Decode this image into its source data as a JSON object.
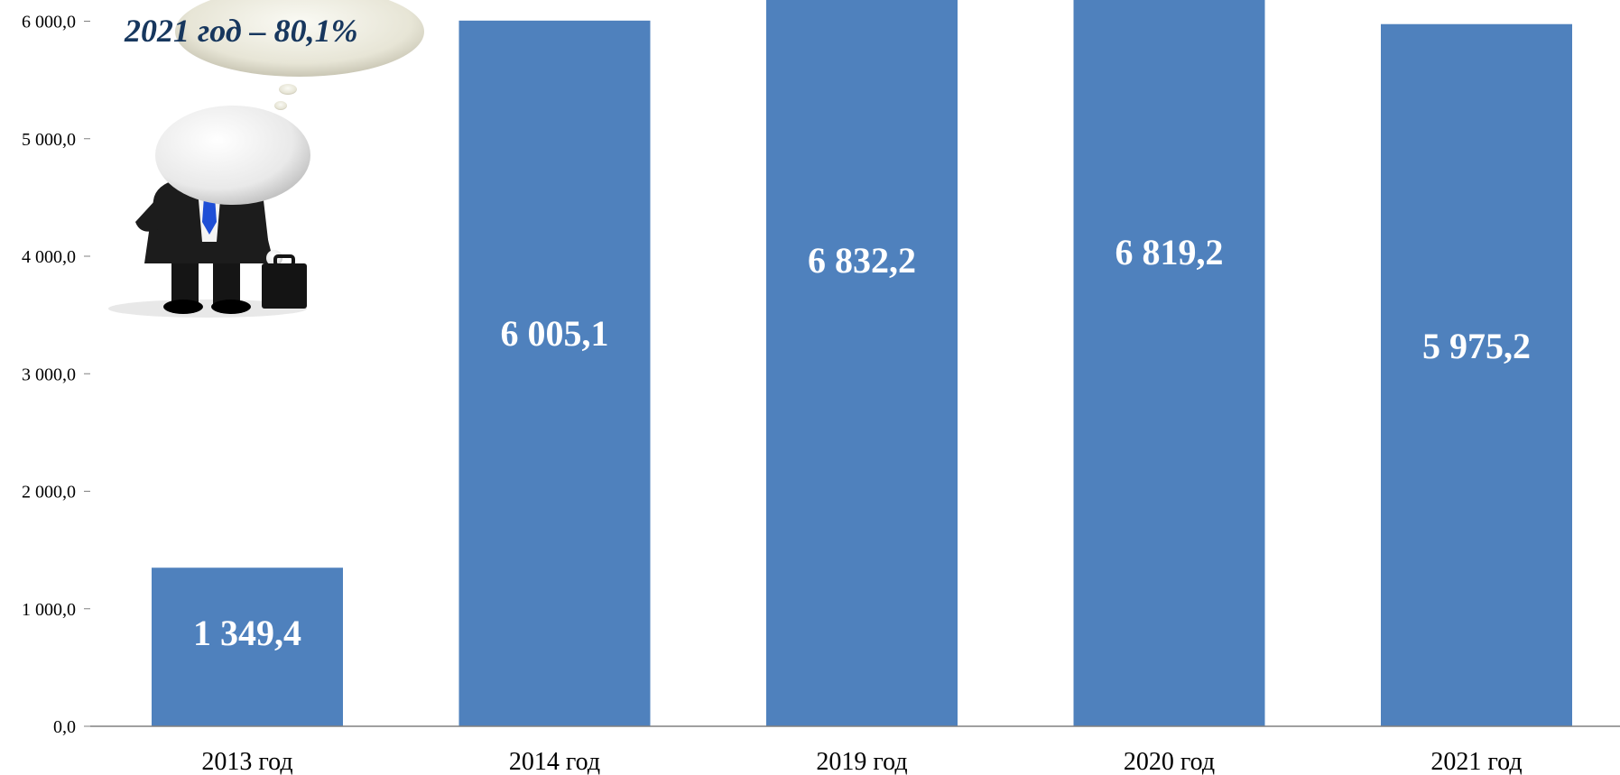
{
  "chart_data": {
    "type": "bar",
    "categories": [
      "2013 год",
      "2014 год",
      "2019 год",
      "2020 год",
      "2021 год"
    ],
    "values": [
      1349.4,
      6005.1,
      6832.2,
      6819.2,
      5975.2
    ],
    "value_labels": [
      "1 349,4",
      "6 005,1",
      "6 832,2",
      "6 819,2",
      "5 975,2"
    ],
    "ylim": [
      0,
      6000
    ],
    "yticks": [
      0,
      1000,
      2000,
      3000,
      4000,
      5000,
      6000
    ],
    "ytick_labels": [
      "0,0",
      "1 000,0",
      "2 000,0",
      "3 000,0",
      "4 000,0",
      "5 000,0",
      "6 000,0"
    ],
    "grid": false,
    "bar_color": "#4f81bd"
  },
  "callout": {
    "text": "2021 год – 80,1%",
    "text_color": "#17375e",
    "illustration": "thinking-businessman-figure"
  }
}
